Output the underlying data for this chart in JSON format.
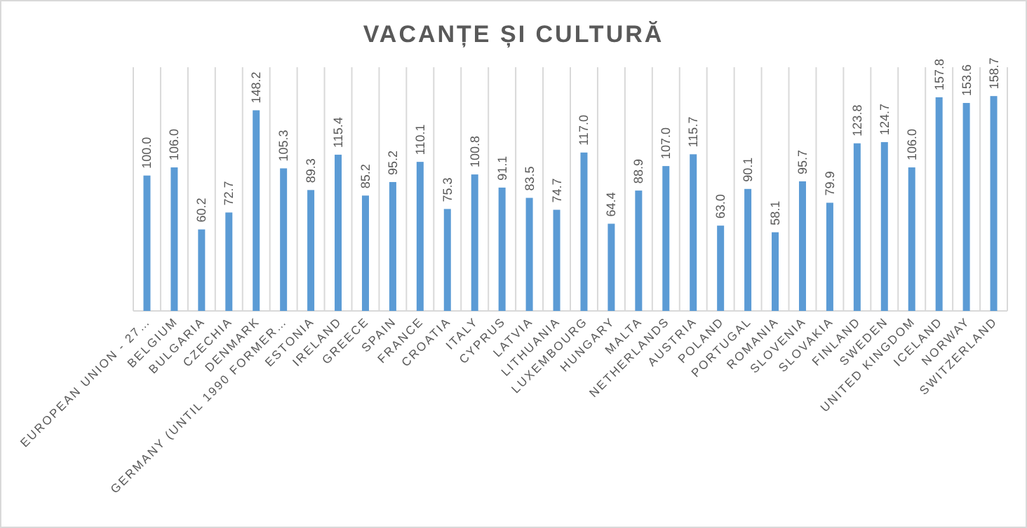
{
  "chart_data": {
    "type": "bar",
    "title": "VACANȚE ȘI CULTURĂ",
    "categories": [
      "EUROPEAN UNION - 27…",
      "BELGIUM",
      "BULGARIA",
      "CZECHIA",
      "DENMARK",
      "GERMANY (UNTIL 1990 FORMER…",
      "ESTONIA",
      "IRELAND",
      "GREECE",
      "SPAIN",
      "FRANCE",
      "CROATIA",
      "ITALY",
      "CYPRUS",
      "LATVIA",
      "LITHUANIA",
      "LUXEMBOURG",
      "HUNGARY",
      "MALTA",
      "NETHERLANDS",
      "AUSTRIA",
      "POLAND",
      "PORTUGAL",
      "ROMANIA",
      "SLOVENIA",
      "SLOVAKIA",
      "FINLAND",
      "SWEDEN",
      "UNITED KINGDOM",
      "ICELAND",
      "NORWAY",
      "SWITZERLAND"
    ],
    "values": [
      100.0,
      106.0,
      60.2,
      72.7,
      148.2,
      105.3,
      89.3,
      115.4,
      85.2,
      95.2,
      110.1,
      75.3,
      100.8,
      91.1,
      83.5,
      74.7,
      117.0,
      64.4,
      88.9,
      107.0,
      115.7,
      63.0,
      90.1,
      58.1,
      95.7,
      79.9,
      123.8,
      124.7,
      106.0,
      157.8,
      153.6,
      158.7
    ],
    "value_labels": [
      "100.0",
      "106.0",
      "60.2",
      "72.7",
      "148.2",
      "105.3",
      "89.3",
      "115.4",
      "85.2",
      "95.2",
      "110.1",
      "75.3",
      "100.8",
      "91.1",
      "83.5",
      "74.7",
      "117.0",
      "64.4",
      "88.9",
      "107.0",
      "115.7",
      "63.0",
      "90.1",
      "58.1",
      "95.7",
      "79.9",
      "123.8",
      "124.7",
      "106.0",
      "157.8",
      "153.6",
      "158.7"
    ],
    "color": "#5b9bd5",
    "ylim": [
      0,
      180
    ],
    "tick_labels": "x",
    "grid": "x"
  }
}
